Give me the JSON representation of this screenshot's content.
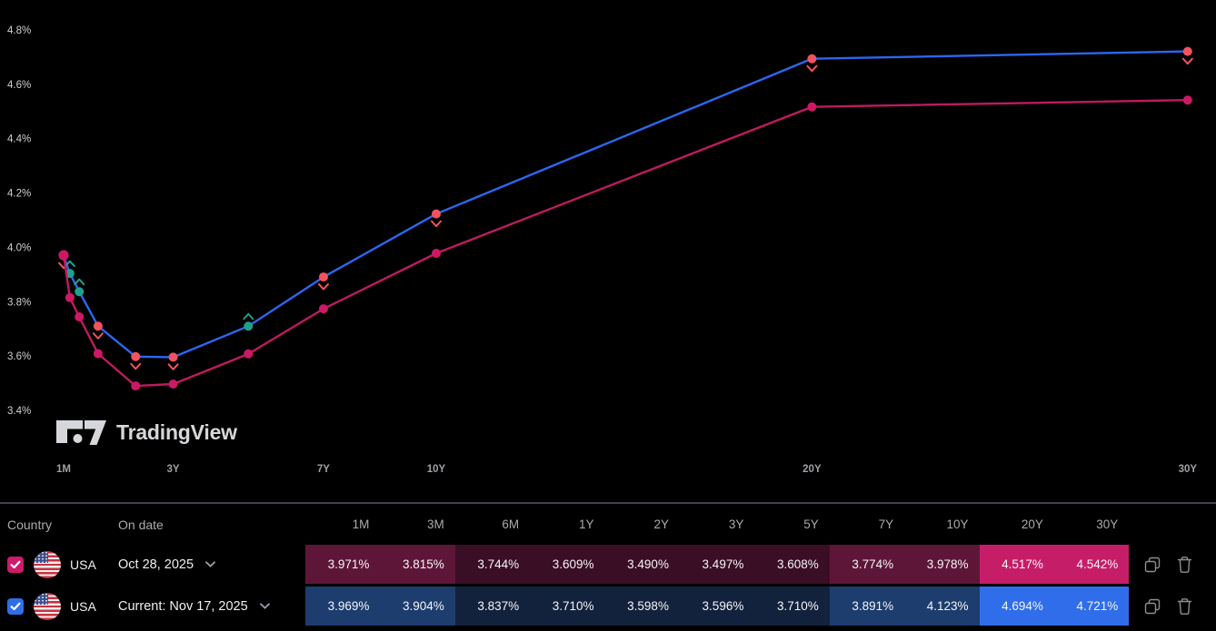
{
  "chart_data": {
    "type": "line",
    "title": "",
    "x_categories": [
      "1M",
      "3M",
      "6M",
      "1Y",
      "2Y",
      "3Y",
      "5Y",
      "7Y",
      "10Y",
      "20Y",
      "30Y"
    ],
    "x_years": [
      0.0833,
      0.25,
      0.5,
      1,
      2,
      3,
      5,
      7,
      10,
      20,
      30
    ],
    "x_axis_visible_labels": [
      "1M",
      "3Y",
      "7Y",
      "10Y",
      "20Y",
      "30Y"
    ],
    "y_tick_labels": [
      "4.8%",
      "4.6%",
      "4.4%",
      "4.2%",
      "4.0%",
      "3.8%",
      "3.6%",
      "3.4%"
    ],
    "y_tick_values": [
      4.8,
      4.6,
      4.4,
      4.2,
      4.0,
      3.8,
      3.6,
      3.4
    ],
    "ylim": [
      3.35,
      4.85
    ],
    "grid": false,
    "legend_position": "none",
    "series": [
      {
        "name": "USA Current: Nov 17, 2025",
        "color": "#2d66f0",
        "point_color_up": "#20a08c",
        "point_color_down": "#f2535f",
        "values": [
          3.969,
          3.904,
          3.837,
          3.71,
          3.598,
          3.596,
          3.71,
          3.891,
          4.123,
          4.694,
          4.721
        ],
        "point_changes": [
          "down",
          "up",
          "up",
          "down",
          "down",
          "down",
          "up",
          "down",
          "down",
          "down",
          "down"
        ]
      },
      {
        "name": "USA Oct 28, 2025",
        "color": "#bd1b5e",
        "point_color": "#cd1965",
        "values": [
          3.971,
          3.815,
          3.744,
          3.609,
          3.49,
          3.497,
          3.608,
          3.774,
          3.978,
          4.517,
          4.542
        ]
      }
    ]
  },
  "watermark": {
    "brand": "TradingView"
  },
  "table": {
    "headers": {
      "country": "Country",
      "on_date": "On date"
    },
    "maturities": [
      "1M",
      "3M",
      "6M",
      "1Y",
      "2Y",
      "3Y",
      "5Y",
      "7Y",
      "10Y",
      "20Y",
      "30Y"
    ],
    "rows": [
      {
        "country": "USA",
        "date_label": "Oct 28, 2025",
        "checked": true,
        "accent": "#d0196b",
        "values": [
          "3.971%",
          "3.815%",
          "3.744%",
          "3.609%",
          "3.490%",
          "3.497%",
          "3.608%",
          "3.774%",
          "3.978%",
          "4.517%",
          "4.542%"
        ],
        "cell_shades": [
          "mid",
          "mid",
          "low",
          "low",
          "low",
          "low",
          "low",
          "mid",
          "mid",
          "high",
          "high"
        ],
        "shade_colors": {
          "low": "#3a0e25",
          "mid": "#5e1638",
          "high": "#c61d68"
        }
      },
      {
        "country": "USA",
        "date_label": "Current: Nov 17, 2025",
        "checked": true,
        "accent": "#2e6fe9",
        "values": [
          "3.969%",
          "3.904%",
          "3.837%",
          "3.710%",
          "3.598%",
          "3.596%",
          "3.710%",
          "3.891%",
          "4.123%",
          "4.694%",
          "4.721%"
        ],
        "cell_shades": [
          "mid",
          "mid",
          "low",
          "low",
          "low",
          "low",
          "low",
          "mid",
          "mid",
          "high",
          "high"
        ],
        "shade_colors": {
          "low": "#13223c",
          "mid": "#1d3d6e",
          "high": "#2f6dea"
        }
      }
    ]
  }
}
